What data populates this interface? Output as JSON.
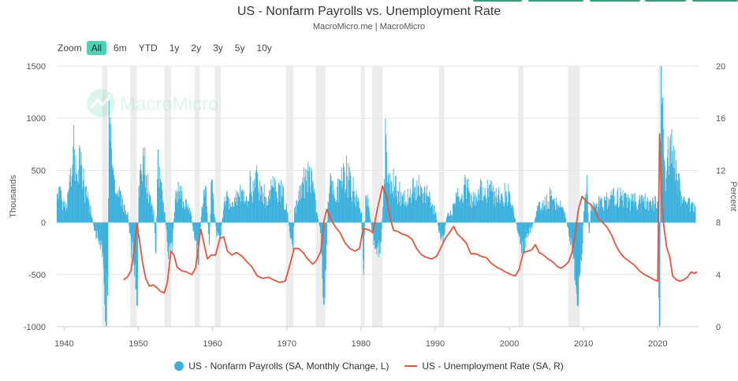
{
  "title": "US - Nonfarm Payrolls vs. Unemployment Rate",
  "subtitle": "MacroMicro.me | MacroMicro",
  "watermark": "MacroMicro",
  "zoom": {
    "label": "Zoom",
    "buttons": [
      "All",
      "6m",
      "YTD",
      "1y",
      "2y",
      "3y",
      "5y",
      "10y"
    ],
    "active": "All"
  },
  "colors": {
    "payrolls": "#3bb0dc",
    "unemployment": "#e8543a",
    "recession": "#ececec",
    "zoom_active": "#4dd3b3",
    "tabs": "#3a9d7a"
  },
  "legend": {
    "payrolls": "US - Nonfarm Payrolls (SA, Monthly Change, L)",
    "unemployment": "US - Unemployment Rate (SA, R)"
  },
  "chart_data": {
    "type": "bar+line",
    "title": "US - Nonfarm Payrolls vs. Unemployment Rate",
    "ylabel_left": "Thousands",
    "ylabel_right": "Percent",
    "xlim": [
      1939.0,
      2025.5
    ],
    "ylim_left": [
      -1000,
      1500
    ],
    "ylim_right": [
      0,
      20
    ],
    "yticks_left": [
      "-1000",
      "-500",
      "0",
      "500",
      "1000",
      "1500"
    ],
    "yticks_right": [
      "0",
      "4",
      "8",
      "12",
      "16",
      "20"
    ],
    "xticks": [
      "1940",
      "1950",
      "1960",
      "1970",
      "1980",
      "1990",
      "2000",
      "2010",
      "2020"
    ],
    "grid": "horizontal",
    "legend_position": "bottom-center",
    "recessions": [
      [
        1945.1,
        1945.8
      ],
      [
        1948.9,
        1949.8
      ],
      [
        1953.5,
        1954.4
      ],
      [
        1957.6,
        1958.3
      ],
      [
        1960.3,
        1961.1
      ],
      [
        1969.9,
        1970.9
      ],
      [
        1973.9,
        1975.2
      ],
      [
        1980.0,
        1980.5
      ],
      [
        1981.5,
        1982.9
      ],
      [
        1990.5,
        1991.2
      ],
      [
        2001.2,
        2001.9
      ],
      [
        2007.9,
        2009.5
      ],
      [
        2020.1,
        2020.4
      ]
    ],
    "payrolls_series": {
      "name": "US - Nonfarm Payrolls (SA, Monthly Change, L)",
      "points": [
        [
          1939.0,
          200
        ],
        [
          1939.5,
          300
        ],
        [
          1940.0,
          150
        ],
        [
          1940.5,
          250
        ],
        [
          1941.0,
          450
        ],
        [
          1941.3,
          700
        ],
        [
          1941.8,
          350
        ],
        [
          1942.0,
          600
        ],
        [
          1942.5,
          400
        ],
        [
          1943.0,
          250
        ],
        [
          1943.5,
          150
        ],
        [
          1944.0,
          -80
        ],
        [
          1944.5,
          -150
        ],
        [
          1945.0,
          -200
        ],
        [
          1945.3,
          -450
        ],
        [
          1945.6,
          -990
        ],
        [
          1945.8,
          -700
        ],
        [
          1946.0,
          950
        ],
        [
          1946.3,
          700
        ],
        [
          1946.6,
          400
        ],
        [
          1947.0,
          200
        ],
        [
          1947.5,
          300
        ],
        [
          1948.0,
          150
        ],
        [
          1948.5,
          100
        ],
        [
          1949.0,
          -250
        ],
        [
          1949.5,
          -400
        ],
        [
          1949.8,
          -800
        ],
        [
          1950.0,
          350
        ],
        [
          1950.3,
          450
        ],
        [
          1950.6,
          600
        ],
        [
          1951.0,
          450
        ],
        [
          1951.5,
          200
        ],
        [
          1952.0,
          100
        ],
        [
          1952.3,
          -300
        ],
        [
          1952.6,
          700
        ],
        [
          1953.0,
          300
        ],
        [
          1953.5,
          100
        ],
        [
          1954.0,
          -350
        ],
        [
          1954.5,
          -200
        ],
        [
          1955.0,
          250
        ],
        [
          1955.5,
          300
        ],
        [
          1956.0,
          200
        ],
        [
          1956.5,
          150
        ],
        [
          1957.0,
          100
        ],
        [
          1957.5,
          -150
        ],
        [
          1958.0,
          -400
        ],
        [
          1958.5,
          150
        ],
        [
          1959.0,
          350
        ],
        [
          1959.5,
          -200
        ],
        [
          1959.8,
          400
        ],
        [
          1960.0,
          250
        ],
        [
          1960.5,
          -100
        ],
        [
          1961.0,
          -150
        ],
        [
          1961.5,
          200
        ],
        [
          1962.0,
          250
        ],
        [
          1962.5,
          150
        ],
        [
          1963.0,
          200
        ],
        [
          1963.5,
          250
        ],
        [
          1964.0,
          300
        ],
        [
          1964.5,
          250
        ],
        [
          1965.0,
          350
        ],
        [
          1965.5,
          300
        ],
        [
          1966.0,
          400
        ],
        [
          1966.5,
          350
        ],
        [
          1967.0,
          250
        ],
        [
          1967.5,
          250
        ],
        [
          1968.0,
          350
        ],
        [
          1968.5,
          300
        ],
        [
          1969.0,
          350
        ],
        [
          1969.5,
          250
        ],
        [
          1970.0,
          100
        ],
        [
          1970.5,
          -150
        ],
        [
          1970.8,
          -300
        ],
        [
          1971.0,
          100
        ],
        [
          1971.5,
          200
        ],
        [
          1972.0,
          350
        ],
        [
          1972.5,
          400
        ],
        [
          1973.0,
          450
        ],
        [
          1973.5,
          300
        ],
        [
          1974.0,
          100
        ],
        [
          1974.5,
          -100
        ],
        [
          1974.9,
          -600
        ],
        [
          1975.2,
          -450
        ],
        [
          1975.5,
          200
        ],
        [
          1976.0,
          400
        ],
        [
          1976.5,
          200
        ],
        [
          1977.0,
          350
        ],
        [
          1977.5,
          400
        ],
        [
          1978.0,
          450
        ],
        [
          1978.5,
          400
        ],
        [
          1979.0,
          300
        ],
        [
          1979.5,
          200
        ],
        [
          1980.0,
          100
        ],
        [
          1980.3,
          -450
        ],
        [
          1980.6,
          250
        ],
        [
          1981.0,
          150
        ],
        [
          1981.5,
          -100
        ],
        [
          1982.0,
          -250
        ],
        [
          1982.5,
          -300
        ],
        [
          1982.9,
          100
        ],
        [
          1983.0,
          300
        ],
        [
          1983.3,
          800
        ],
        [
          1983.6,
          450
        ],
        [
          1984.0,
          400
        ],
        [
          1984.5,
          350
        ],
        [
          1985.0,
          300
        ],
        [
          1985.5,
          250
        ],
        [
          1986.0,
          200
        ],
        [
          1986.5,
          250
        ],
        [
          1987.0,
          300
        ],
        [
          1987.5,
          350
        ],
        [
          1988.0,
          300
        ],
        [
          1988.5,
          250
        ],
        [
          1989.0,
          250
        ],
        [
          1989.5,
          150
        ],
        [
          1990.0,
          100
        ],
        [
          1990.5,
          -100
        ],
        [
          1991.0,
          -200
        ],
        [
          1991.5,
          50
        ],
        [
          1992.0,
          100
        ],
        [
          1992.5,
          150
        ],
        [
          1993.0,
          250
        ],
        [
          1993.5,
          250
        ],
        [
          1994.0,
          350
        ],
        [
          1994.5,
          300
        ],
        [
          1995.0,
          200
        ],
        [
          1995.5,
          250
        ],
        [
          1996.0,
          300
        ],
        [
          1996.5,
          250
        ],
        [
          1997.0,
          300
        ],
        [
          1997.5,
          300
        ],
        [
          1998.0,
          250
        ],
        [
          1998.5,
          300
        ],
        [
          1999.0,
          250
        ],
        [
          1999.5,
          300
        ],
        [
          2000.0,
          250
        ],
        [
          2000.5,
          100
        ],
        [
          2001.0,
          -50
        ],
        [
          2001.5,
          -200
        ],
        [
          2001.9,
          -300
        ],
        [
          2002.5,
          -100
        ],
        [
          2003.0,
          -50
        ],
        [
          2003.5,
          50
        ],
        [
          2004.0,
          200
        ],
        [
          2004.5,
          150
        ],
        [
          2005.0,
          200
        ],
        [
          2005.5,
          250
        ],
        [
          2006.0,
          200
        ],
        [
          2006.5,
          150
        ],
        [
          2007.0,
          150
        ],
        [
          2007.5,
          50
        ],
        [
          2008.0,
          -100
        ],
        [
          2008.5,
          -300
        ],
        [
          2008.9,
          -600
        ],
        [
          2009.1,
          -800
        ],
        [
          2009.4,
          -500
        ],
        [
          2009.8,
          -200
        ],
        [
          2010.0,
          100
        ],
        [
          2010.4,
          350
        ],
        [
          2010.7,
          -100
        ],
        [
          2011.0,
          150
        ],
        [
          2011.5,
          150
        ],
        [
          2012.0,
          200
        ],
        [
          2012.5,
          150
        ],
        [
          2013.0,
          200
        ],
        [
          2013.5,
          200
        ],
        [
          2014.0,
          250
        ],
        [
          2014.5,
          250
        ],
        [
          2015.0,
          250
        ],
        [
          2015.5,
          200
        ],
        [
          2016.0,
          200
        ],
        [
          2016.5,
          200
        ],
        [
          2017.0,
          200
        ],
        [
          2017.5,
          200
        ],
        [
          2018.0,
          200
        ],
        [
          2018.5,
          200
        ],
        [
          2019.0,
          200
        ],
        [
          2019.5,
          180
        ],
        [
          2019.9,
          200
        ],
        [
          2020.2,
          -990
        ],
        [
          2020.4,
          1500
        ],
        [
          2020.6,
          1200
        ],
        [
          2020.8,
          600
        ],
        [
          2021.0,
          300
        ],
        [
          2021.3,
          700
        ],
        [
          2021.6,
          800
        ],
        [
          2021.9,
          600
        ],
        [
          2022.2,
          500
        ],
        [
          2022.6,
          400
        ],
        [
          2023.0,
          300
        ],
        [
          2023.5,
          250
        ],
        [
          2024.0,
          200
        ],
        [
          2024.5,
          150
        ],
        [
          2025.0,
          150
        ]
      ]
    },
    "unemployment_series": {
      "name": "US - Unemployment Rate (SA, R)",
      "points": [
        [
          1948.0,
          3.6
        ],
        [
          1948.5,
          3.8
        ],
        [
          1949.0,
          4.3
        ],
        [
          1949.5,
          6.2
        ],
        [
          1949.8,
          7.9
        ],
        [
          1950.2,
          6.4
        ],
        [
          1950.6,
          4.8
        ],
        [
          1951.0,
          3.7
        ],
        [
          1951.5,
          3.1
        ],
        [
          1952.0,
          3.2
        ],
        [
          1952.5,
          3.0
        ],
        [
          1953.0,
          2.7
        ],
        [
          1953.5,
          2.6
        ],
        [
          1953.9,
          3.4
        ],
        [
          1954.4,
          5.8
        ],
        [
          1954.8,
          5.5
        ],
        [
          1955.2,
          4.6
        ],
        [
          1955.8,
          4.3
        ],
        [
          1956.5,
          4.2
        ],
        [
          1957.2,
          4.0
        ],
        [
          1957.7,
          4.5
        ],
        [
          1958.4,
          7.5
        ],
        [
          1958.8,
          6.5
        ],
        [
          1959.3,
          5.2
        ],
        [
          1959.8,
          5.5
        ],
        [
          1960.4,
          5.5
        ],
        [
          1961.0,
          6.8
        ],
        [
          1961.5,
          6.9
        ],
        [
          1962.0,
          5.8
        ],
        [
          1962.6,
          5.5
        ],
        [
          1963.2,
          5.7
        ],
        [
          1964.0,
          5.4
        ],
        [
          1964.6,
          5.0
        ],
        [
          1965.3,
          4.6
        ],
        [
          1966.0,
          3.9
        ],
        [
          1966.8,
          3.7
        ],
        [
          1967.5,
          3.8
        ],
        [
          1968.2,
          3.6
        ],
        [
          1969.0,
          3.4
        ],
        [
          1969.8,
          3.5
        ],
        [
          1970.5,
          4.9
        ],
        [
          1971.0,
          6.0
        ],
        [
          1971.6,
          6.0
        ],
        [
          1972.2,
          5.7
        ],
        [
          1972.8,
          5.2
        ],
        [
          1973.5,
          4.8
        ],
        [
          1974.0,
          5.1
        ],
        [
          1974.6,
          5.8
        ],
        [
          1975.0,
          8.1
        ],
        [
          1975.4,
          9.0
        ],
        [
          1975.9,
          8.3
        ],
        [
          1976.5,
          7.7
        ],
        [
          1977.2,
          7.2
        ],
        [
          1977.8,
          6.5
        ],
        [
          1978.5,
          6.0
        ],
        [
          1979.2,
          5.8
        ],
        [
          1979.8,
          6.0
        ],
        [
          1980.3,
          7.5
        ],
        [
          1980.7,
          7.5
        ],
        [
          1981.2,
          7.4
        ],
        [
          1981.6,
          7.2
        ],
        [
          1982.2,
          9.0
        ],
        [
          1982.6,
          10.0
        ],
        [
          1982.9,
          10.8
        ],
        [
          1983.4,
          10.1
        ],
        [
          1983.9,
          8.4
        ],
        [
          1984.4,
          7.4
        ],
        [
          1985.0,
          7.3
        ],
        [
          1985.6,
          7.1
        ],
        [
          1986.2,
          7.0
        ],
        [
          1986.9,
          6.7
        ],
        [
          1987.5,
          6.0
        ],
        [
          1988.2,
          5.5
        ],
        [
          1988.9,
          5.3
        ],
        [
          1989.5,
          5.2
        ],
        [
          1990.2,
          5.4
        ],
        [
          1990.8,
          6.1
        ],
        [
          1991.4,
          6.8
        ],
        [
          1991.9,
          7.2
        ],
        [
          1992.5,
          7.7
        ],
        [
          1993.0,
          7.1
        ],
        [
          1993.6,
          6.8
        ],
        [
          1994.2,
          6.4
        ],
        [
          1994.8,
          5.6
        ],
        [
          1995.5,
          5.6
        ],
        [
          1996.2,
          5.4
        ],
        [
          1996.9,
          5.3
        ],
        [
          1997.5,
          4.9
        ],
        [
          1998.2,
          4.6
        ],
        [
          1998.9,
          4.4
        ],
        [
          1999.5,
          4.2
        ],
        [
          2000.2,
          4.0
        ],
        [
          2000.8,
          3.9
        ],
        [
          2001.3,
          4.4
        ],
        [
          2001.9,
          5.7
        ],
        [
          2002.5,
          5.8
        ],
        [
          2003.0,
          5.9
        ],
        [
          2003.5,
          6.3
        ],
        [
          2004.0,
          5.7
        ],
        [
          2004.6,
          5.5
        ],
        [
          2005.2,
          5.2
        ],
        [
          2005.8,
          5.0
        ],
        [
          2006.5,
          4.6
        ],
        [
          2007.0,
          4.5
        ],
        [
          2007.5,
          4.7
        ],
        [
          2008.0,
          5.0
        ],
        [
          2008.5,
          5.8
        ],
        [
          2008.9,
          7.3
        ],
        [
          2009.3,
          9.0
        ],
        [
          2009.8,
          10.0
        ],
        [
          2010.4,
          9.6
        ],
        [
          2010.9,
          9.4
        ],
        [
          2011.5,
          9.0
        ],
        [
          2012.0,
          8.3
        ],
        [
          2012.6,
          8.0
        ],
        [
          2013.2,
          7.6
        ],
        [
          2013.8,
          7.0
        ],
        [
          2014.4,
          6.2
        ],
        [
          2014.9,
          5.7
        ],
        [
          2015.5,
          5.3
        ],
        [
          2016.2,
          5.0
        ],
        [
          2016.9,
          4.7
        ],
        [
          2017.5,
          4.3
        ],
        [
          2018.2,
          4.0
        ],
        [
          2018.9,
          3.8
        ],
        [
          2019.5,
          3.6
        ],
        [
          2020.0,
          3.5
        ],
        [
          2020.25,
          14.8
        ],
        [
          2020.5,
          10.2
        ],
        [
          2020.8,
          7.8
        ],
        [
          2021.2,
          6.1
        ],
        [
          2021.6,
          5.4
        ],
        [
          2022.0,
          3.9
        ],
        [
          2022.5,
          3.6
        ],
        [
          2023.0,
          3.5
        ],
        [
          2023.5,
          3.6
        ],
        [
          2024.0,
          3.8
        ],
        [
          2024.5,
          4.2
        ],
        [
          2024.9,
          4.1
        ],
        [
          2025.3,
          4.2
        ]
      ]
    }
  }
}
